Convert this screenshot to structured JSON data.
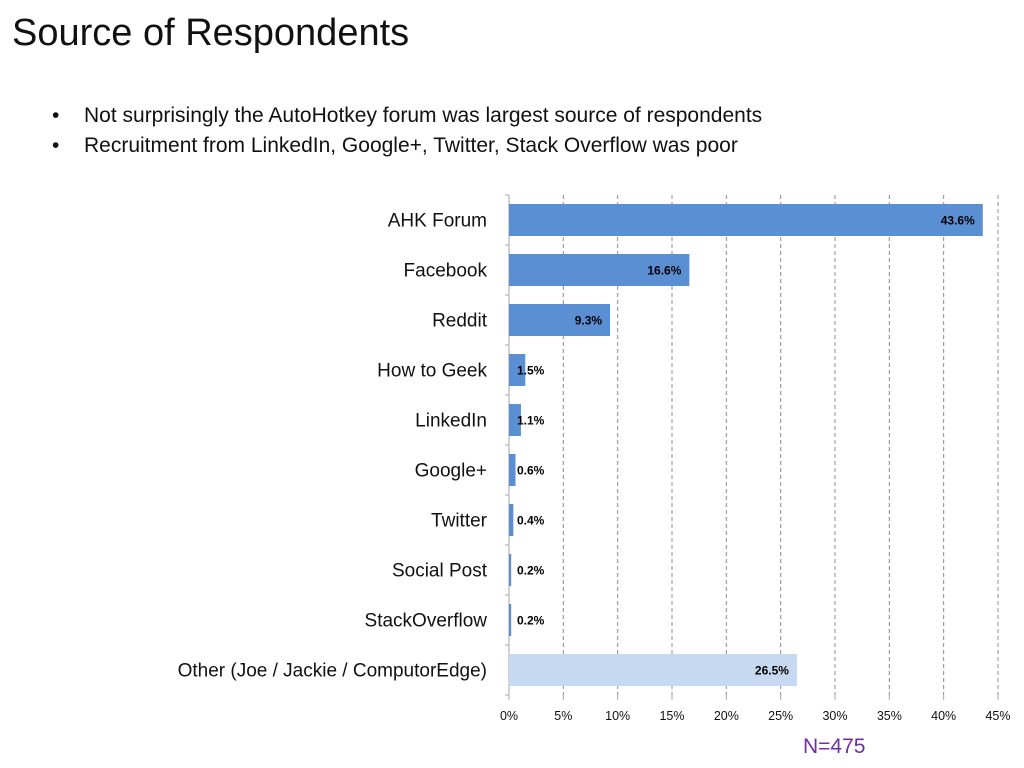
{
  "page": {
    "title": "Source of Respondents",
    "bullets": [
      "Not surprisingly the AutoHotkey forum was largest source of respondents",
      "Recruitment from LinkedIn, Google+, Twitter, Stack Overflow was poor"
    ],
    "sample_size": "N=475"
  },
  "colors": {
    "bar": "#5b8fd4",
    "bar_highlight": "#c6d9f1",
    "grid": "#8c8c8c",
    "n_label": "#7030a0"
  },
  "chart_data": {
    "type": "bar",
    "orientation": "horizontal",
    "categories": [
      "AHK Forum",
      "Facebook",
      "Reddit",
      "How to Geek",
      "LinkedIn",
      "Google+",
      "Twitter",
      "Social Post",
      "StackOverflow",
      "Other (Joe / Jackie / ComputorEdge)"
    ],
    "values": [
      43.6,
      16.6,
      9.3,
      1.5,
      1.1,
      0.6,
      0.4,
      0.2,
      0.2,
      26.5
    ],
    "data_labels": [
      "43.6%",
      "16.6%",
      "9.3%",
      "1.5%",
      "1.1%",
      "0.6%",
      "0.4%",
      "0.2%",
      "0.2%",
      "26.5%"
    ],
    "highlight_category": "Other (Joe / Jackie / ComputorEdge)",
    "xlim": [
      0,
      45
    ],
    "xticks": [
      0,
      5,
      10,
      15,
      20,
      25,
      30,
      35,
      40,
      45
    ],
    "xtick_labels": [
      "0%",
      "5%",
      "10%",
      "15%",
      "20%",
      "25%",
      "30%",
      "35%",
      "40%",
      "45%"
    ],
    "grid": "vertical dashed",
    "legend": "none"
  }
}
